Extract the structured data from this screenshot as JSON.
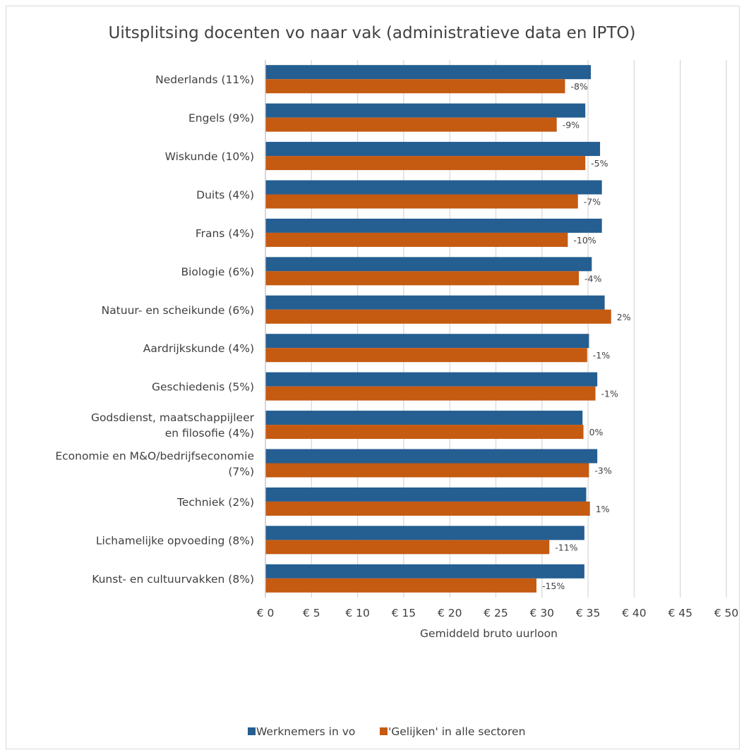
{
  "chart_data": {
    "type": "bar",
    "orientation": "horizontal",
    "title": "Uitsplitsing docenten vo naar vak (administratieve data en IPTO)",
    "xlabel": "Gemiddeld bruto uurloon",
    "ylabel": "",
    "xlim": [
      0,
      50
    ],
    "x_tick_labels": [
      "€ 0",
      "€ 5",
      "€ 10",
      "€ 15",
      "€ 20",
      "€ 25",
      "€ 30",
      "€ 35",
      "€ 40",
      "€ 45",
      "€ 50"
    ],
    "grid": "vertical",
    "legend_position": "bottom",
    "categories": [
      [
        "Nederlands (11%)"
      ],
      [
        "Engels (9%)"
      ],
      [
        "Wiskunde (10%)"
      ],
      [
        "Duits (4%)"
      ],
      [
        "Frans (4%)"
      ],
      [
        "Biologie (6%)"
      ],
      [
        "Natuur- en scheikunde (6%)"
      ],
      [
        "Aardrijkskunde (4%)"
      ],
      [
        "Geschiedenis (5%)"
      ],
      [
        "Godsdienst, maatschappijleer",
        "en filosofie (4%)"
      ],
      [
        "Economie en M&O/bedrijfseconomie",
        "(7%)"
      ],
      [
        "Techniek (2%)"
      ],
      [
        "Lichamelijke opvoeding (8%)"
      ],
      [
        "Kunst- en cultuurvakken (8%)"
      ]
    ],
    "series": [
      {
        "name": "Werknemers in vo",
        "color": "#255e91",
        "values": [
          35.3,
          34.7,
          36.3,
          36.5,
          36.5,
          35.4,
          36.8,
          35.1,
          36.0,
          34.4,
          36.0,
          34.8,
          34.6,
          34.6
        ]
      },
      {
        "name": "'Gelijken' in alle sectoren",
        "color": "#c55a11",
        "values": [
          32.5,
          31.6,
          34.7,
          33.9,
          32.8,
          34.0,
          37.5,
          34.9,
          35.8,
          34.5,
          35.1,
          35.2,
          30.8,
          29.4
        ]
      }
    ],
    "data_labels": [
      "-8%",
      "-9%",
      "-5%",
      "-7%",
      "-10%",
      "-4%",
      "2%",
      "-1%",
      "-1%",
      "0%",
      "-3%",
      "1%",
      "-11%",
      "-15%"
    ]
  }
}
